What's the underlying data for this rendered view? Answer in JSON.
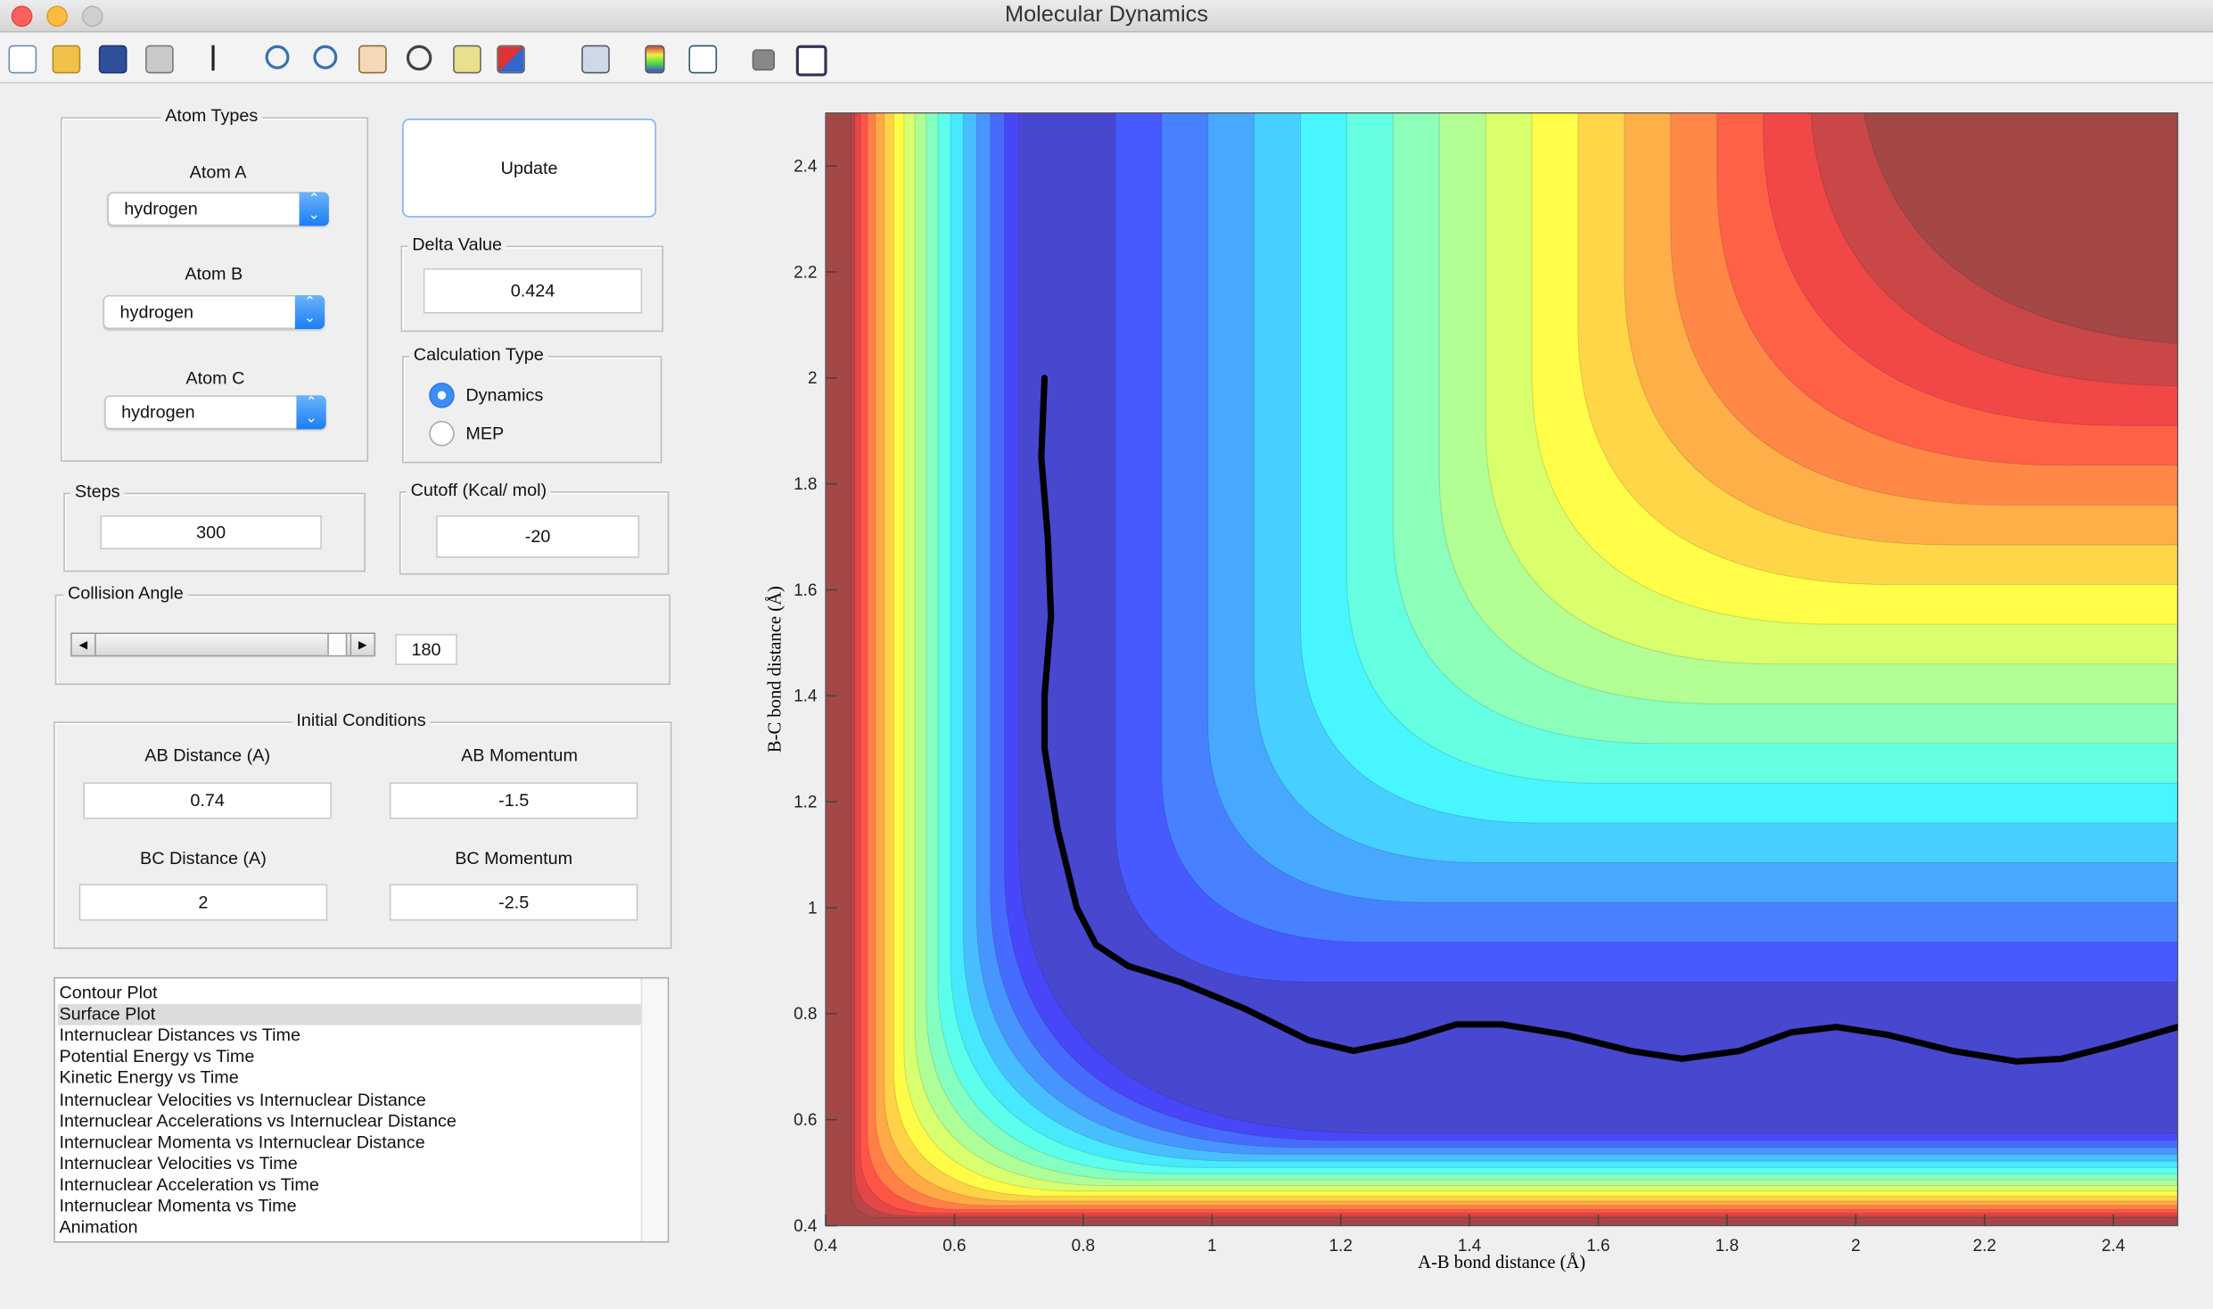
{
  "window": {
    "title": "Molecular Dynamics"
  },
  "atom_types": {
    "title": "Atom Types",
    "atoms": [
      {
        "label": "Atom A",
        "value": "hydrogen"
      },
      {
        "label": "Atom B",
        "value": "hydrogen"
      },
      {
        "label": "Atom C",
        "value": "hydrogen"
      }
    ]
  },
  "update_button": "Update",
  "delta_value": {
    "label": "Delta Value",
    "value": "0.424"
  },
  "calculation_type": {
    "label": "Calculation Type",
    "options": [
      "Dynamics",
      "MEP"
    ],
    "selected": 0
  },
  "steps": {
    "label": "Steps",
    "value": "300"
  },
  "cutoff": {
    "label": "Cutoff (Kcal/ mol)",
    "value": "-20"
  },
  "collision_angle": {
    "label": "Collision Angle",
    "value": "180"
  },
  "initial_conditions": {
    "title": "Initial Conditions",
    "fields": [
      {
        "label": "AB Distance (A)",
        "value": "0.74"
      },
      {
        "label": "AB Momentum",
        "value": "-1.5"
      },
      {
        "label": "BC Distance (A)",
        "value": "2"
      },
      {
        "label": "BC Momentum",
        "value": "-2.5"
      }
    ]
  },
  "plot_list": {
    "items": [
      "Contour Plot",
      "Surface Plot",
      "Internuclear Distances vs Time",
      "Potential Energy vs Time",
      "Kinetic Energy vs Time",
      "Internuclear Velocities vs Internuclear Distance",
      "Internuclear Accelerations vs Internuclear Distance",
      "Internuclear Momenta vs Internuclear Distance",
      "Internuclear Velocities vs Time",
      "Internuclear Acceleration vs Time",
      "Internuclear Momenta vs Time",
      "Animation"
    ],
    "selected": 1
  },
  "chart_data": {
    "type": "contour",
    "xlabel": "A-B bond distance (Å)",
    "ylabel": "B-C bond distance (Å)",
    "xlim": [
      0.4,
      2.5
    ],
    "ylim": [
      0.4,
      2.5
    ],
    "xticks": [
      0.4,
      0.6,
      0.8,
      1,
      1.2,
      1.4,
      1.6,
      1.8,
      2,
      2.2,
      2.4
    ],
    "yticks": [
      0.4,
      0.6,
      0.8,
      1,
      1.2,
      1.4,
      1.6,
      1.8,
      2,
      2.2,
      2.4
    ],
    "series": [
      {
        "color": "#000000",
        "x": [
          0.74,
          0.735,
          0.745,
          0.75,
          0.74,
          0.74,
          0.76,
          0.79,
          0.82,
          0.87,
          0.95,
          1.05,
          1.15,
          1.22,
          1.3,
          1.38,
          1.45,
          1.55,
          1.65,
          1.73,
          1.82,
          1.9,
          1.97,
          2.05,
          2.15,
          2.25,
          2.32,
          2.4,
          2.5
        ],
        "values": [
          2.0,
          1.85,
          1.7,
          1.55,
          1.4,
          1.3,
          1.15,
          1.0,
          0.93,
          0.89,
          0.86,
          0.81,
          0.75,
          0.73,
          0.75,
          0.78,
          0.78,
          0.76,
          0.73,
          0.715,
          0.73,
          0.765,
          0.775,
          0.76,
          0.73,
          0.71,
          0.715,
          0.74,
          0.775
        ]
      }
    ]
  }
}
